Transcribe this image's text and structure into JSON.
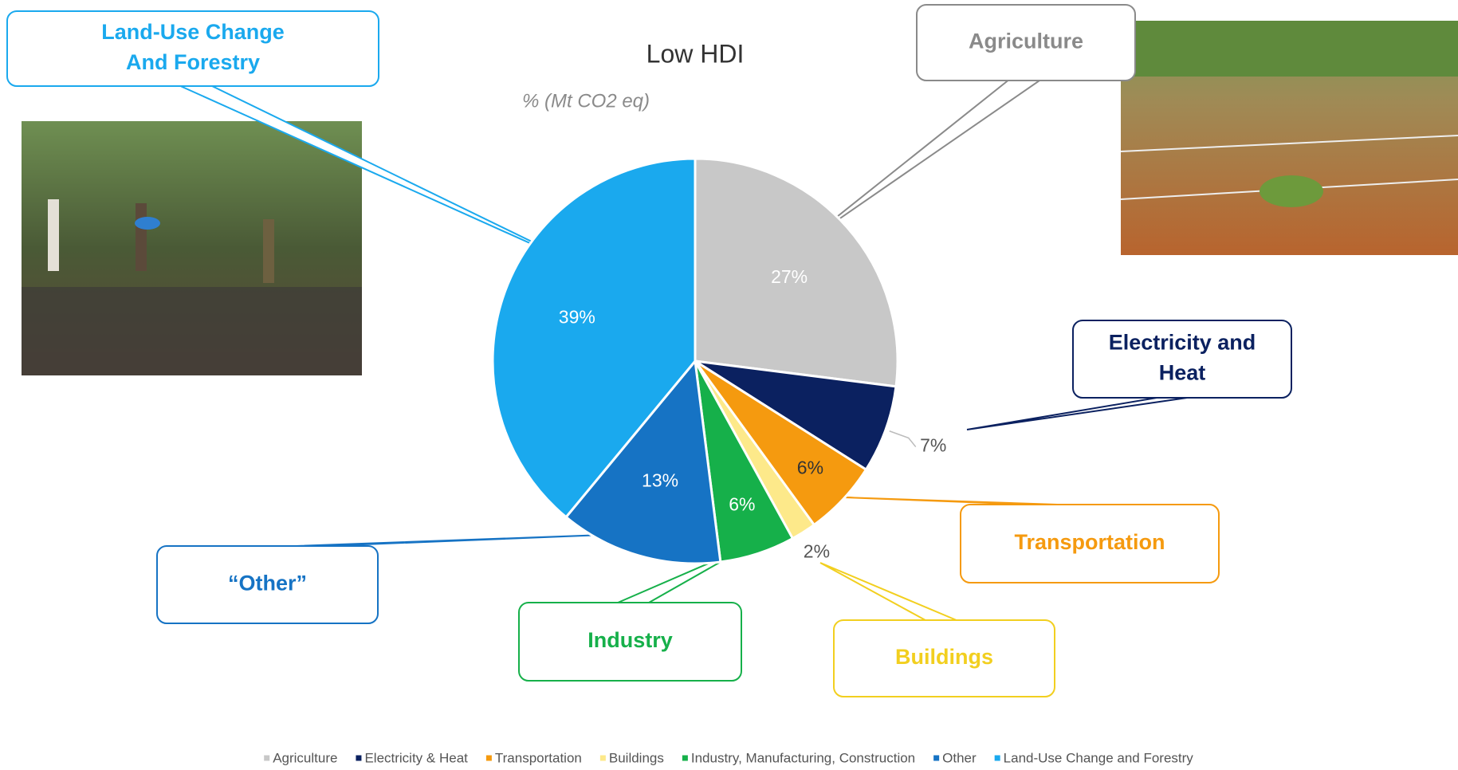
{
  "chart_data": {
    "type": "pie",
    "title": "Low HDI",
    "subtitle": "% (Mt CO2 eq)",
    "categories": [
      "Agriculture",
      "Electricity & Heat",
      "Transportation",
      "Buildings",
      "Industry, Manufacturing, Construction",
      "Other",
      "Land-Use Change and Forestry"
    ],
    "values": [
      27,
      7,
      6,
      2,
      6,
      13,
      39
    ],
    "value_labels": [
      "27%",
      "7%",
      "6%",
      "2%",
      "6%",
      "13%",
      "39%"
    ],
    "colors": [
      "#c8c8c8",
      "#0b2160",
      "#f59a0f",
      "#fde98a",
      "#16b04a",
      "#1673c4",
      "#1aa9ee"
    ],
    "legend": "bottom",
    "annotations": [
      {
        "lines": [
          "Land-Use Change",
          "And Forestry"
        ],
        "color": "#1aa9ee"
      },
      {
        "lines": [
          "Agriculture"
        ],
        "color": "#8a8a8a"
      },
      {
        "lines": [
          "Electricity and",
          "Heat"
        ],
        "color": "#0b2160"
      },
      {
        "lines": [
          "Transportation"
        ],
        "color": "#f59a0f"
      },
      {
        "lines": [
          "Buildings"
        ],
        "color": "#f2cf1f"
      },
      {
        "lines": [
          "Industry"
        ],
        "color": "#16b04a"
      },
      {
        "lines": [
          "“Other”"
        ],
        "color": "#1673c4"
      }
    ]
  }
}
